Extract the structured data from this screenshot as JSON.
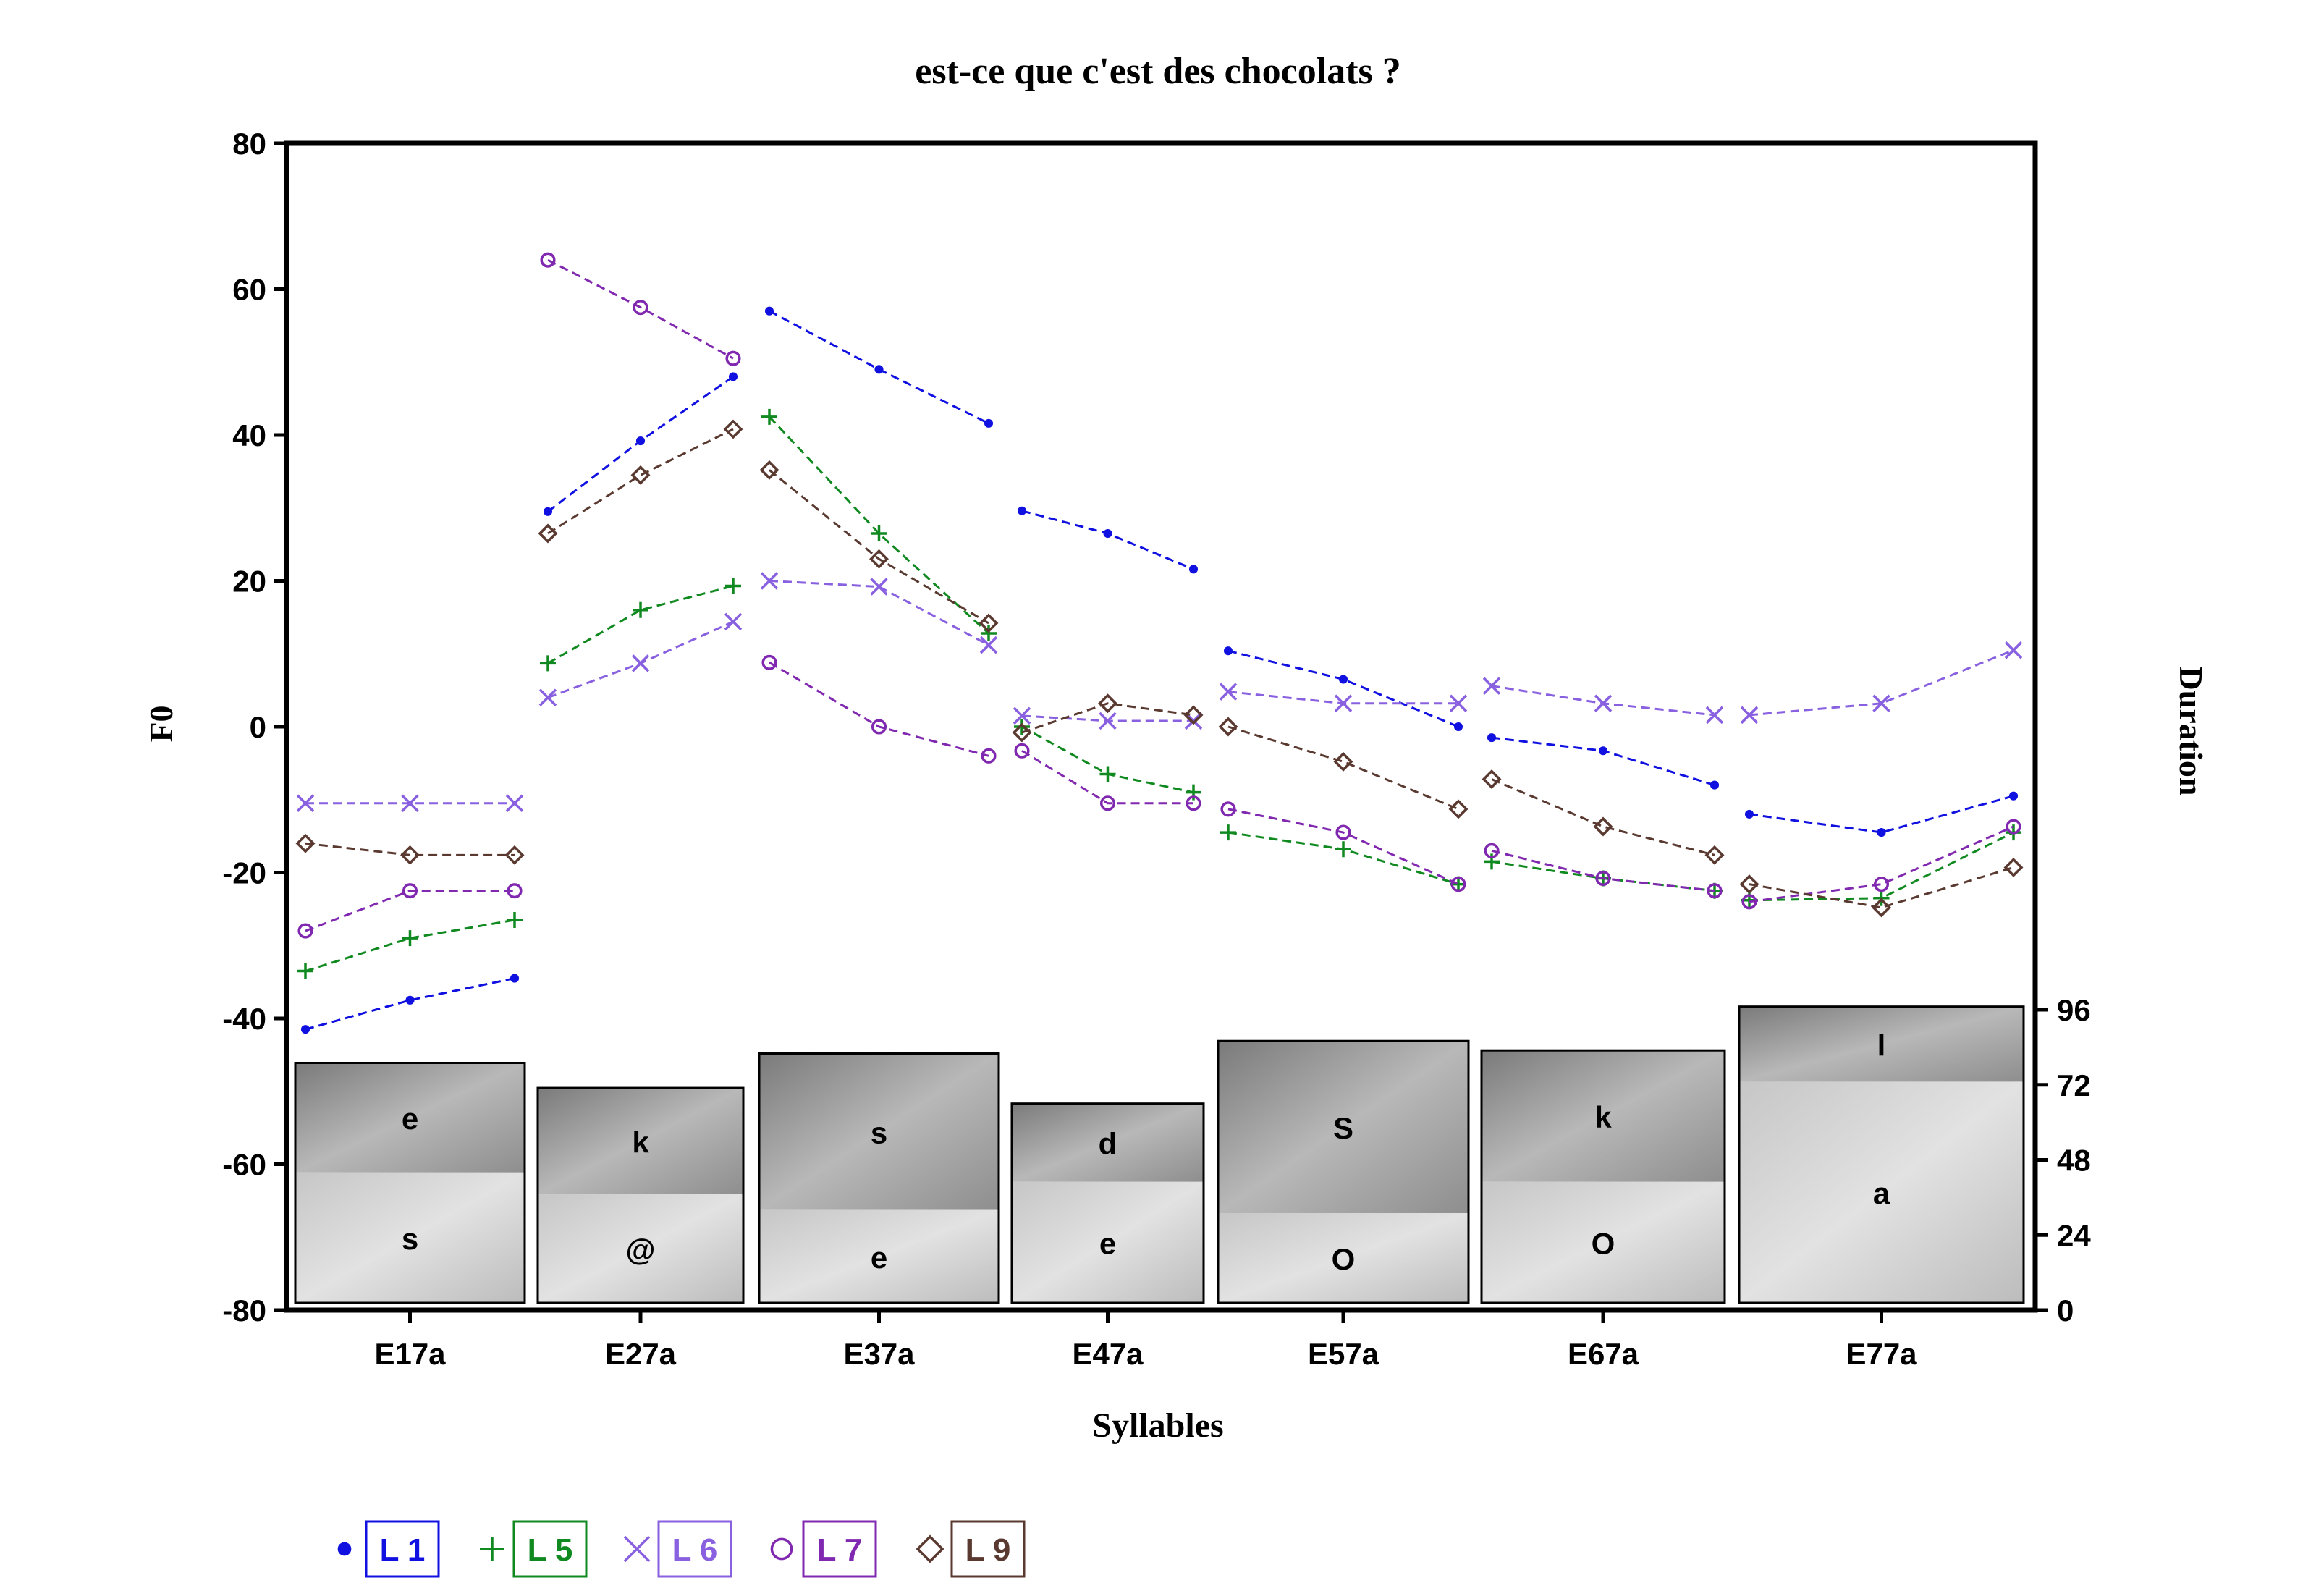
{
  "chart_data": {
    "type": "line",
    "title": "est-ce que c'est des chocolats ?",
    "xlabel": "Syllables",
    "ylabel": "F0",
    "y2label": "Duration",
    "ylim": [
      -80,
      80
    ],
    "yticks": [
      -80,
      -60,
      -40,
      -20,
      0,
      20,
      40,
      60,
      80
    ],
    "y2lim": [
      0,
      96
    ],
    "y2ticks": [
      0,
      24,
      48,
      72,
      96
    ],
    "grid": false,
    "legend_position": "bottom-left",
    "syllables": [
      {
        "label": "E17a",
        "duration": 79,
        "split": 44,
        "top_phone": "e",
        "bottom_phone": "s"
      },
      {
        "label": "E27a",
        "duration": 71,
        "split": 37,
        "top_phone": "k",
        "bottom_phone": "@"
      },
      {
        "label": "E37a",
        "duration": 82,
        "split": 32,
        "top_phone": "s",
        "bottom_phone": "e"
      },
      {
        "label": "E47a",
        "duration": 66,
        "split": 41,
        "top_phone": "d",
        "bottom_phone": "e"
      },
      {
        "label": "E57a",
        "duration": 86,
        "split": 31,
        "top_phone": "S",
        "bottom_phone": "O"
      },
      {
        "label": "E67a",
        "duration": 83,
        "split": 41,
        "top_phone": "k",
        "bottom_phone": "O"
      },
      {
        "label": "E77a",
        "duration": 97,
        "split": 73,
        "top_phone": "l",
        "bottom_phone": "a"
      }
    ],
    "series": [
      {
        "name": "L 1",
        "color": "#1010e0",
        "marker": "dot",
        "values": [
          [
            -41.5,
            -37.5,
            -34.5
          ],
          [
            29.5,
            39.2,
            48
          ],
          [
            57,
            49,
            41.6
          ],
          [
            29.6,
            26.5,
            21.6
          ],
          [
            10.4,
            6.5,
            0
          ],
          [
            -1.5,
            -3.3,
            -8
          ],
          [
            -12,
            -14.5,
            -9.5
          ]
        ]
      },
      {
        "name": "L 5",
        "color": "#108a20",
        "marker": "plus",
        "values": [
          [
            -33.5,
            -29,
            -26.5
          ],
          [
            8.7,
            16,
            19.3
          ],
          [
            42.5,
            26.5,
            12.8
          ],
          [
            0,
            -6.5,
            -9
          ],
          [
            -14.5,
            -16.8,
            -21.6
          ],
          [
            -18.5,
            -20.8,
            -22.5
          ],
          [
            -23.8,
            -23.5,
            -14.5
          ]
        ]
      },
      {
        "name": "L 6",
        "color": "#8860e0",
        "marker": "cross",
        "values": [
          [
            -10.5,
            -10.5,
            -10.5
          ],
          [
            4,
            8.7,
            14.4
          ],
          [
            20,
            19.2,
            11.2
          ],
          [
            1.5,
            0.8,
            0.8
          ],
          [
            4.8,
            3.2,
            3.2
          ],
          [
            5.6,
            3.2,
            1.6
          ],
          [
            1.6,
            3.2,
            10.5
          ]
        ]
      },
      {
        "name": "L 7",
        "color": "#8028b0",
        "marker": "circle",
        "values": [
          [
            -28,
            -22.5,
            -22.5
          ],
          [
            64,
            57.5,
            50.5
          ],
          [
            8.8,
            0,
            -4
          ],
          [
            -3.3,
            -10.5,
            -10.5
          ],
          [
            -11.3,
            -14.5,
            -21.6
          ],
          [
            -17,
            -20.8,
            -22.5
          ],
          [
            -24,
            -21.6,
            -13.7
          ]
        ]
      },
      {
        "name": "L 9",
        "color": "#5a3a30",
        "marker": "diamond",
        "values": [
          [
            -16,
            -17.6,
            -17.6
          ],
          [
            26.5,
            34.5,
            40.8
          ],
          [
            35.2,
            23,
            14.2
          ],
          [
            -0.8,
            3.2,
            1.6
          ],
          [
            0,
            -4.8,
            -11.3
          ],
          [
            -7.2,
            -13.7,
            -17.6
          ],
          [
            -21.6,
            -24.8,
            -19.3
          ]
        ]
      }
    ]
  }
}
